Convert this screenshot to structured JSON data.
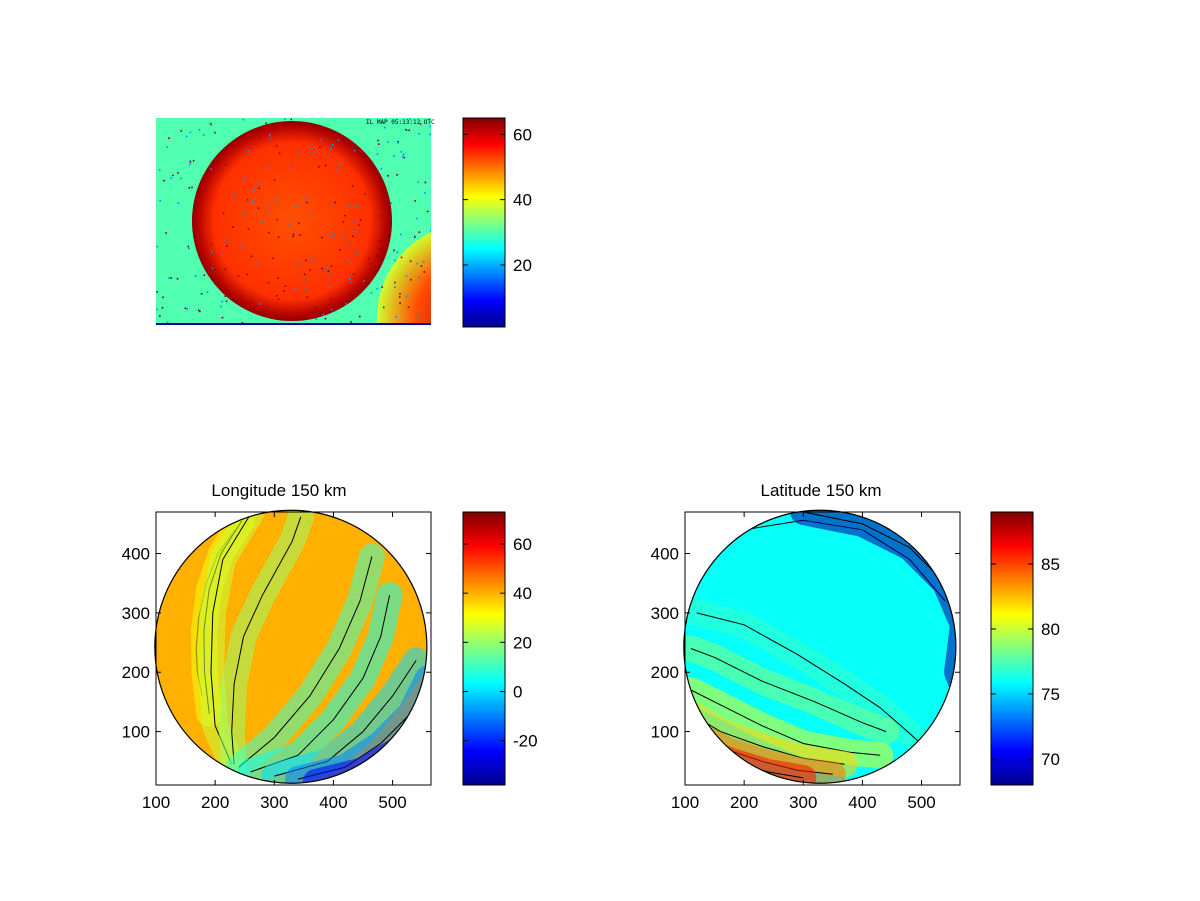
{
  "colormap": [
    "#00008f",
    "#0000ff",
    "#0080ff",
    "#00ffff",
    "#80ff80",
    "#ffff00",
    "#ff8000",
    "#ff0000",
    "#800000"
  ],
  "chart_data": [
    {
      "type": "heatmap",
      "title": "",
      "xlabel": "",
      "ylabel": "",
      "image_text": "IL MAP 05:13:12 UTC",
      "colorbar": {
        "range": [
          1,
          65
        ],
        "ticks": [
          20,
          40,
          60
        ]
      },
      "disk_value_approx": 52,
      "background_value_approx": 30,
      "limb_value_approx": 62
    },
    {
      "type": "heatmap",
      "title": "Longitude 150 km",
      "xlabel": "",
      "ylabel": "",
      "xlim": [
        100,
        565
      ],
      "ylim": [
        10,
        470
      ],
      "xticks": [
        100,
        200,
        300,
        400,
        500
      ],
      "yticks": [
        100,
        200,
        300,
        400
      ],
      "disk": {
        "center": [
          328,
          243
        ],
        "radius": 230
      },
      "colorbar": {
        "range": [
          -38,
          73
        ],
        "ticks": [
          -20,
          0,
          20,
          40,
          60
        ]
      },
      "bands": [
        {
          "value": 40,
          "poly": [
            [
              178,
              160
            ],
            [
              170,
              200
            ],
            [
              168,
              240
            ],
            [
              172,
              290
            ],
            [
              185,
              350
            ],
            [
              205,
              400
            ],
            [
              233,
              440
            ]
          ]
        },
        {
          "value": 30,
          "poly": [
            [
              190,
              130
            ],
            [
              182,
              200
            ],
            [
              181,
              270
            ],
            [
              190,
              340
            ],
            [
              210,
              400
            ],
            [
              245,
              455
            ]
          ]
        },
        {
          "value": 25,
          "poly": [
            [
              228,
              45
            ],
            [
              200,
              110
            ],
            [
              193,
              200
            ],
            [
              196,
              300
            ],
            [
              213,
              390
            ],
            [
              262,
              470
            ]
          ]
        },
        {
          "value": 20,
          "poly": [
            [
              232,
              45
            ],
            [
              228,
              100
            ],
            [
              232,
              180
            ],
            [
              248,
              260
            ],
            [
              280,
              330
            ],
            [
              330,
              420
            ],
            [
              345,
              462
            ]
          ]
        },
        {
          "value": 10,
          "poly": [
            [
              240,
              40
            ],
            [
              300,
              90
            ],
            [
              360,
              160
            ],
            [
              410,
              240
            ],
            [
              445,
              320
            ],
            [
              465,
              395
            ]
          ]
        },
        {
          "value": 5,
          "poly": [
            [
              260,
              32
            ],
            [
              340,
              60
            ],
            [
              400,
              120
            ],
            [
              450,
              190
            ],
            [
              480,
              260
            ],
            [
              495,
              330
            ]
          ]
        },
        {
          "value": 0,
          "poly": [
            [
              300,
              25
            ],
            [
              390,
              50
            ],
            [
              450,
              100
            ],
            [
              500,
              160
            ],
            [
              540,
              220
            ]
          ]
        },
        {
          "value": -10,
          "poly": [
            [
              340,
              20
            ],
            [
              420,
              40
            ],
            [
              480,
              80
            ],
            [
              530,
              130
            ],
            [
              560,
              190
            ]
          ]
        },
        {
          "value": -25,
          "poly": [
            [
              370,
              15
            ],
            [
              450,
              35
            ],
            [
              510,
              70
            ],
            [
              560,
              130
            ]
          ]
        }
      ]
    },
    {
      "type": "heatmap",
      "title": "Latitude 150 km",
      "xlabel": "",
      "ylabel": "",
      "xlim": [
        100,
        565
      ],
      "ylim": [
        10,
        470
      ],
      "xticks": [
        100,
        200,
        300,
        400,
        500
      ],
      "yticks": [
        100,
        200,
        300,
        400
      ],
      "disk": {
        "center": [
          328,
          243
        ],
        "radius": 230
      },
      "colorbar": {
        "range": [
          68,
          89
        ],
        "ticks": [
          70,
          75,
          80,
          85
        ]
      },
      "bands": [
        {
          "value": 76,
          "poly": [
            [
              130,
              395
            ],
            [
              200,
              440
            ],
            [
              300,
              456
            ],
            [
              400,
              440
            ],
            [
              480,
              390
            ],
            [
              540,
              320
            ]
          ]
        },
        {
          "value": 77,
          "poly": [
            [
              120,
              300
            ],
            [
              200,
              280
            ],
            [
              290,
              230
            ],
            [
              370,
              180
            ],
            [
              430,
              140
            ],
            [
              465,
              110
            ],
            [
              510,
              70
            ]
          ]
        },
        {
          "value": 78.5,
          "poly": [
            [
              110,
              240
            ],
            [
              150,
              225
            ],
            [
              230,
              185
            ],
            [
              320,
              150
            ],
            [
              400,
              115
            ],
            [
              440,
              100
            ]
          ]
        },
        {
          "value": 80.5,
          "poly": [
            [
              110,
              170
            ],
            [
              150,
              150
            ],
            [
              230,
              110
            ],
            [
              300,
              80
            ],
            [
              380,
              65
            ],
            [
              430,
              60
            ]
          ]
        },
        {
          "value": 82,
          "poly": [
            [
              110,
              130
            ],
            [
              160,
              100
            ],
            [
              230,
              75
            ],
            [
              300,
              55
            ],
            [
              370,
              45
            ]
          ]
        },
        {
          "value": 84,
          "poly": [
            [
              120,
              95
            ],
            [
              170,
              70
            ],
            [
              230,
              50
            ],
            [
              290,
              35
            ],
            [
              350,
              28
            ]
          ]
        },
        {
          "value": 86,
          "poly": [
            [
              130,
              70
            ],
            [
              180,
              50
            ],
            [
              240,
              32
            ],
            [
              300,
              22
            ]
          ]
        },
        {
          "value": 68.5,
          "poly": [
            [
              300,
              470
            ],
            [
              400,
              450
            ],
            [
              480,
              410
            ],
            [
              540,
              350
            ],
            [
              570,
              280
            ],
            [
              560,
              200
            ],
            [
              580,
              150
            ]
          ]
        }
      ]
    }
  ]
}
